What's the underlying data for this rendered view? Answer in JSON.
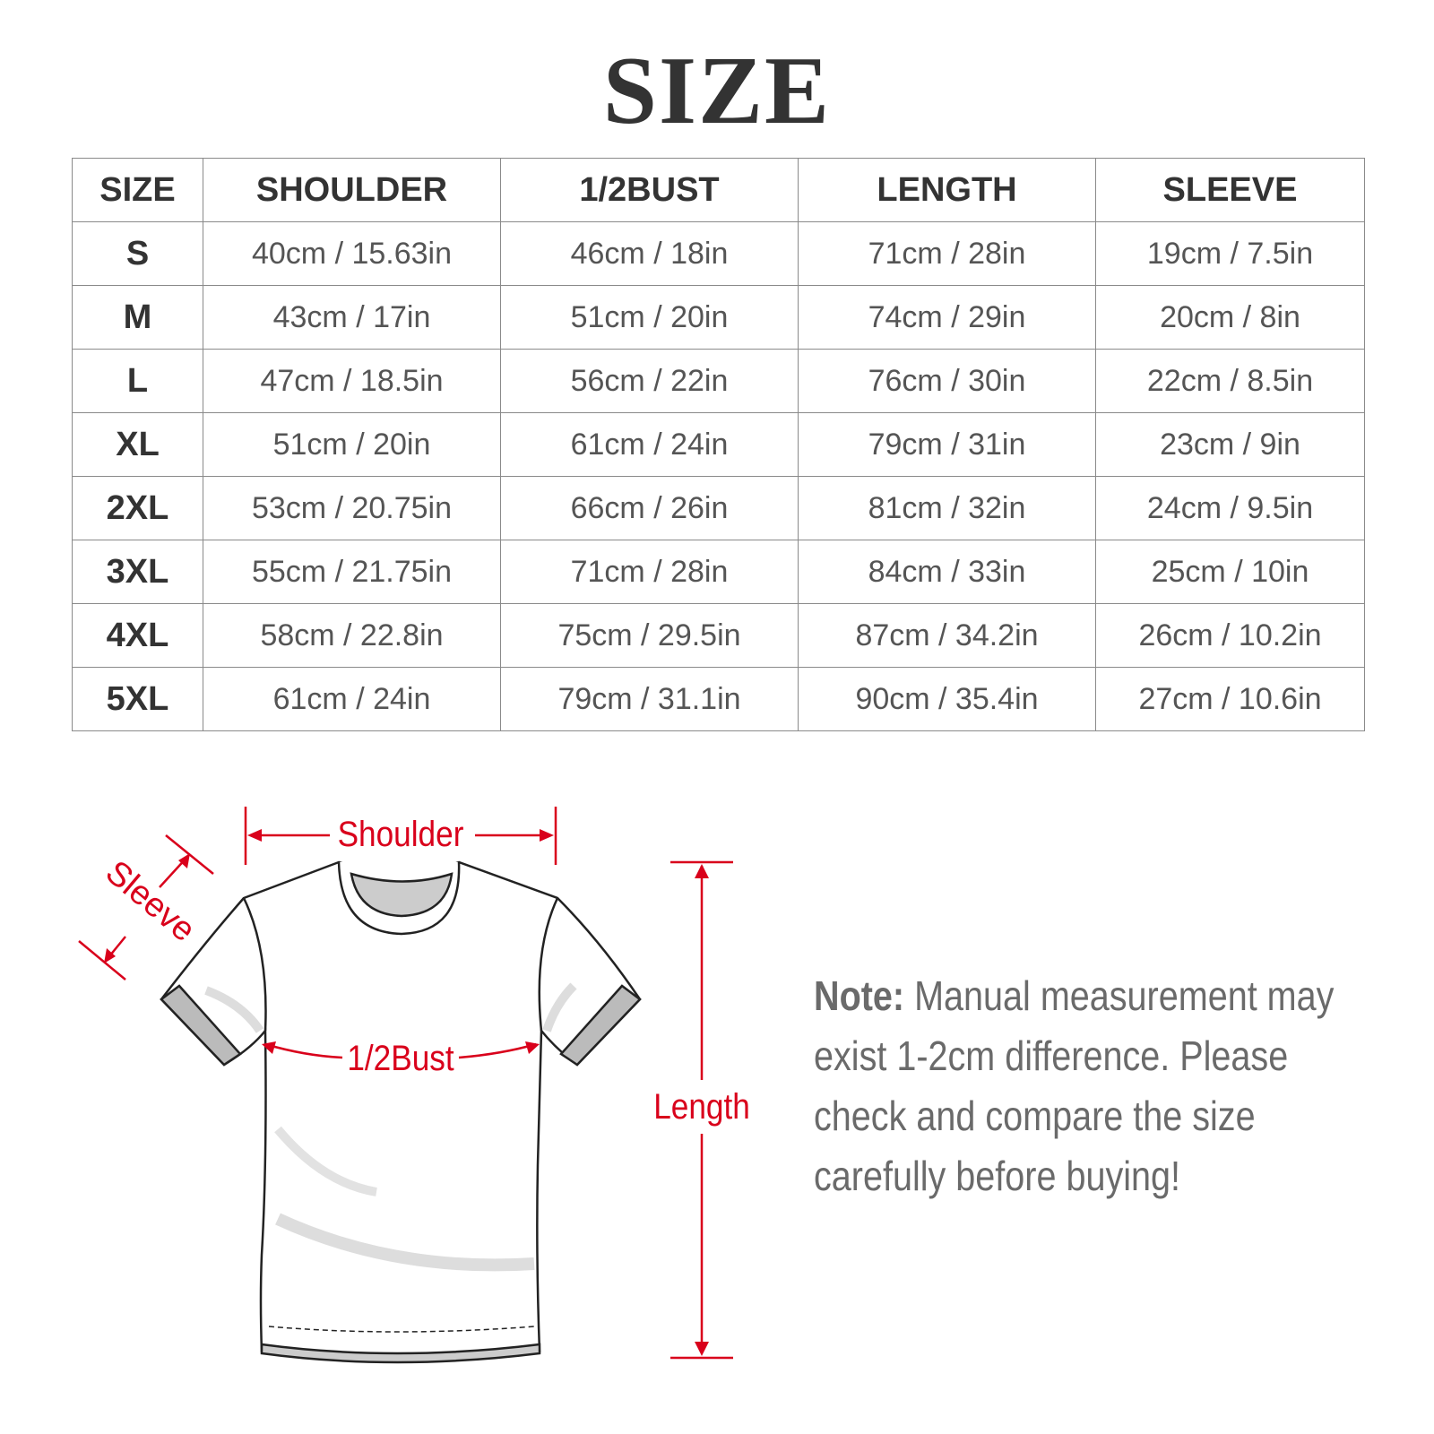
{
  "title": "SIZE",
  "table": {
    "headers": [
      "SIZE",
      "SHOULDER",
      "1/2BUST",
      "LENGTH",
      "SLEEVE"
    ],
    "rows": [
      [
        "S",
        "40cm / 15.63in",
        "46cm / 18in",
        "71cm / 28in",
        "19cm / 7.5in"
      ],
      [
        "M",
        "43cm / 17in",
        "51cm / 20in",
        "74cm / 29in",
        "20cm / 8in"
      ],
      [
        "L",
        "47cm / 18.5in",
        "56cm / 22in",
        "76cm / 30in",
        "22cm / 8.5in"
      ],
      [
        "XL",
        "51cm / 20in",
        "61cm / 24in",
        "79cm / 31in",
        "23cm / 9in"
      ],
      [
        "2XL",
        "53cm / 20.75in",
        "66cm / 26in",
        "81cm / 32in",
        "24cm / 9.5in"
      ],
      [
        "3XL",
        "55cm / 21.75in",
        "71cm / 28in",
        "84cm / 33in",
        "25cm / 10in"
      ],
      [
        "4XL",
        "58cm / 22.8in",
        "75cm / 29.5in",
        "87cm / 34.2in",
        "26cm / 10.2in"
      ],
      [
        "5XL",
        "61cm / 24in",
        "79cm / 31.1in",
        "90cm / 35.4in",
        "27cm / 10.6in"
      ]
    ]
  },
  "diagram": {
    "shoulder_label": "Shoulder",
    "sleeve_label": "Sleeve",
    "bust_label": "1/2Bust",
    "length_label": "Length",
    "accent_color": "#d9001b"
  },
  "note": {
    "label": "Note:",
    "text": " Manual measurement may exist 1-2cm difference. Please check and compare the size carefully before buying!"
  }
}
